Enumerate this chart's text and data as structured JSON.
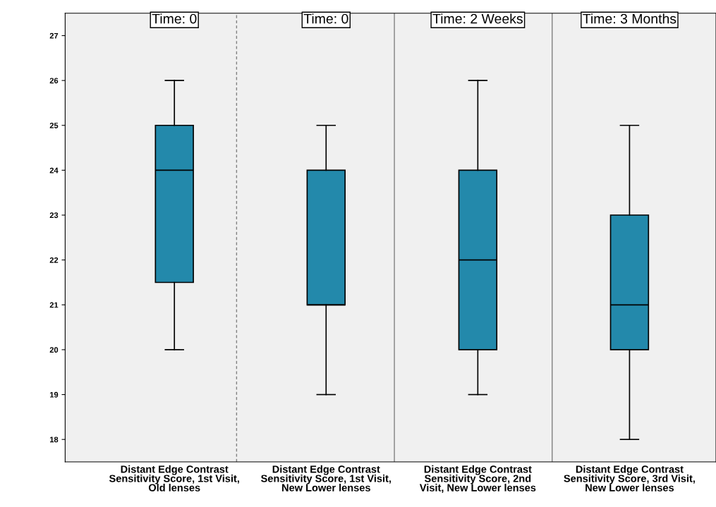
{
  "chart_data": {
    "type": "box",
    "categories": [
      "Distant Edge Contrast\nSensitivity Score, 1st Visit,\nOld lenses",
      "Distant Edge Contrast\nSensitivity Score, 1st Visit,\nNew Lower lenses",
      "Distant Edge Contrast\nSensitivity Score, 2nd\nVisit, New Lower lenses",
      "Distant Edge Contrast\nSensitivity Score, 3rd Visit,\nNew Lower lenses"
    ],
    "boxes": [
      {
        "low": 20,
        "q1": 21.5,
        "median": 24,
        "q3": 25,
        "high": 26
      },
      {
        "low": 19,
        "q1": 21,
        "median": 21,
        "q3": 24,
        "high": 25
      },
      {
        "low": 19,
        "q1": 20,
        "median": 22,
        "q3": 24,
        "high": 26
      },
      {
        "low": 18,
        "q1": 20,
        "median": 21,
        "q3": 23,
        "high": 25
      }
    ],
    "color": "#2389ab",
    "ylim": [
      17.5,
      27.5
    ],
    "yticks": [
      18,
      19,
      20,
      21,
      22,
      23,
      24,
      25,
      26,
      27
    ],
    "grid": false,
    "legend": false,
    "annotations": [
      "Time: 0",
      "Time: 0",
      "Time: 2 Weeks",
      "Time: 3 Months"
    ]
  }
}
